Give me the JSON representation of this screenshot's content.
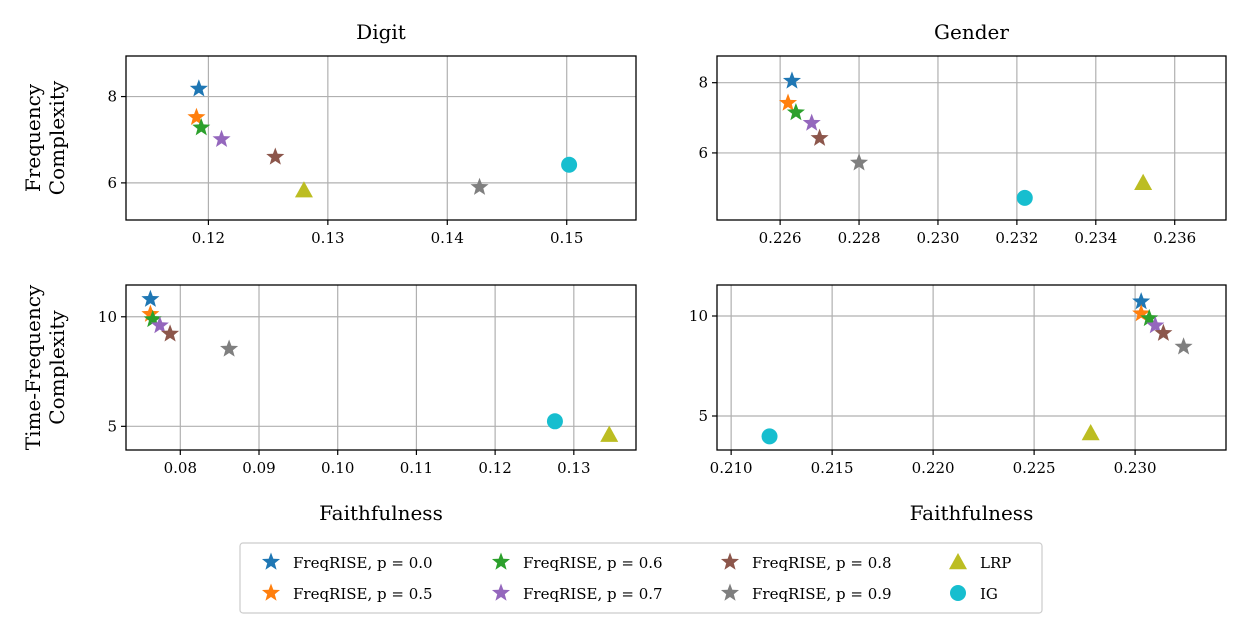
{
  "colors": {
    "p00": "#1f77b4",
    "p05": "#ff7f0e",
    "p06": "#2ca02c",
    "p07": "#9467bd",
    "p08": "#8c564b",
    "p09": "#7f7f7f",
    "lrp": "#bcbd22",
    "ig": "#17becf",
    "grid": "#b0b0b0"
  },
  "legend": {
    "items": [
      {
        "key": "p00",
        "label": "FreqRISE, p = 0.0",
        "marker": "star"
      },
      {
        "key": "p05",
        "label": "FreqRISE, p = 0.5",
        "marker": "star"
      },
      {
        "key": "p06",
        "label": "FreqRISE, p = 0.6",
        "marker": "star"
      },
      {
        "key": "p07",
        "label": "FreqRISE, p = 0.7",
        "marker": "star"
      },
      {
        "key": "p08",
        "label": "FreqRISE, p = 0.8",
        "marker": "star"
      },
      {
        "key": "p09",
        "label": "FreqRISE, p = 0.9",
        "marker": "star"
      },
      {
        "key": "lrp",
        "label": "LRP",
        "marker": "triangle"
      },
      {
        "key": "ig",
        "label": "IG",
        "marker": "circle"
      }
    ]
  },
  "chart_data": [
    {
      "type": "scatter",
      "title": "Digit",
      "xlabel": "",
      "ylabel": "Frequency\nComplexity",
      "xlim": [
        0.1131,
        0.1558
      ],
      "ylim": [
        5.14,
        8.94
      ],
      "xticks": [
        0.12,
        0.13,
        0.14,
        0.15
      ],
      "xtick_labels": [
        "0.12",
        "0.13",
        "0.14",
        "0.15"
      ],
      "yticks": [
        6,
        8
      ],
      "ytick_labels": [
        "6",
        "8"
      ],
      "grid": true,
      "points": [
        {
          "series": "p00",
          "x": 0.1192,
          "y": 8.18
        },
        {
          "series": "p05",
          "x": 0.119,
          "y": 7.52
        },
        {
          "series": "p06",
          "x": 0.1194,
          "y": 7.28
        },
        {
          "series": "p07",
          "x": 0.1211,
          "y": 7.01
        },
        {
          "series": "p08",
          "x": 0.1256,
          "y": 6.6
        },
        {
          "series": "p09",
          "x": 0.1427,
          "y": 5.9
        },
        {
          "series": "lrp",
          "x": 0.128,
          "y": 5.83
        },
        {
          "series": "ig",
          "x": 0.1502,
          "y": 6.42
        }
      ]
    },
    {
      "type": "scatter",
      "title": "Gender",
      "xlabel": "",
      "ylabel": "",
      "xlim": [
        0.2244,
        0.2373
      ],
      "ylim": [
        4.09,
        8.76
      ],
      "xticks": [
        0.226,
        0.228,
        0.23,
        0.232,
        0.234,
        0.236
      ],
      "xtick_labels": [
        "0.226",
        "0.228",
        "0.230",
        "0.232",
        "0.234",
        "0.236"
      ],
      "yticks": [
        6,
        8
      ],
      "ytick_labels": [
        "6",
        "8"
      ],
      "grid": true,
      "points": [
        {
          "series": "p00",
          "x": 0.2263,
          "y": 8.05
        },
        {
          "series": "p05",
          "x": 0.2262,
          "y": 7.42
        },
        {
          "series": "p06",
          "x": 0.2264,
          "y": 7.15
        },
        {
          "series": "p07",
          "x": 0.2268,
          "y": 6.85
        },
        {
          "series": "p08",
          "x": 0.227,
          "y": 6.42
        },
        {
          "series": "p09",
          "x": 0.228,
          "y": 5.72
        },
        {
          "series": "lrp",
          "x": 0.2352,
          "y": 5.15
        },
        {
          "series": "ig",
          "x": 0.2322,
          "y": 4.72
        }
      ]
    },
    {
      "type": "scatter",
      "title": "",
      "xlabel": "Faithfulness",
      "ylabel": "Time-Frequency\nComplexity",
      "xlim": [
        0.0731,
        0.1379
      ],
      "ylim": [
        3.92,
        11.45
      ],
      "xticks": [
        0.08,
        0.09,
        0.1,
        0.11,
        0.12,
        0.13
      ],
      "xtick_labels": [
        "0.08",
        "0.09",
        "0.10",
        "0.11",
        "0.12",
        "0.13"
      ],
      "yticks": [
        5,
        10
      ],
      "ytick_labels": [
        "5",
        "10"
      ],
      "grid": true,
      "points": [
        {
          "series": "p00",
          "x": 0.0762,
          "y": 10.8
        },
        {
          "series": "p05",
          "x": 0.0762,
          "y": 10.12
        },
        {
          "series": "p06",
          "x": 0.0765,
          "y": 9.88
        },
        {
          "series": "p07",
          "x": 0.0774,
          "y": 9.6
        },
        {
          "series": "p08",
          "x": 0.0787,
          "y": 9.22
        },
        {
          "series": "p09",
          "x": 0.0862,
          "y": 8.53
        },
        {
          "series": "lrp",
          "x": 0.1345,
          "y": 4.62
        },
        {
          "series": "ig",
          "x": 0.1276,
          "y": 5.23
        }
      ]
    },
    {
      "type": "scatter",
      "title": "",
      "xlabel": "Faithfulness",
      "ylabel": "",
      "xlim": [
        0.2093,
        0.2345
      ],
      "ylim": [
        3.3,
        11.55
      ],
      "xticks": [
        0.21,
        0.215,
        0.22,
        0.225,
        0.23
      ],
      "xtick_labels": [
        "0.210",
        "0.215",
        "0.220",
        "0.225",
        "0.230"
      ],
      "yticks": [
        5,
        10
      ],
      "ytick_labels": [
        "5",
        "10"
      ],
      "grid": true,
      "points": [
        {
          "series": "p00",
          "x": 0.2303,
          "y": 10.72
        },
        {
          "series": "p05",
          "x": 0.2303,
          "y": 10.12
        },
        {
          "series": "p06",
          "x": 0.2307,
          "y": 9.88
        },
        {
          "series": "p07",
          "x": 0.231,
          "y": 9.52
        },
        {
          "series": "p08",
          "x": 0.2314,
          "y": 9.14
        },
        {
          "series": "p09",
          "x": 0.2324,
          "y": 8.46
        },
        {
          "series": "lrp",
          "x": 0.2278,
          "y": 4.15
        },
        {
          "series": "ig",
          "x": 0.2119,
          "y": 3.98
        }
      ]
    }
  ]
}
